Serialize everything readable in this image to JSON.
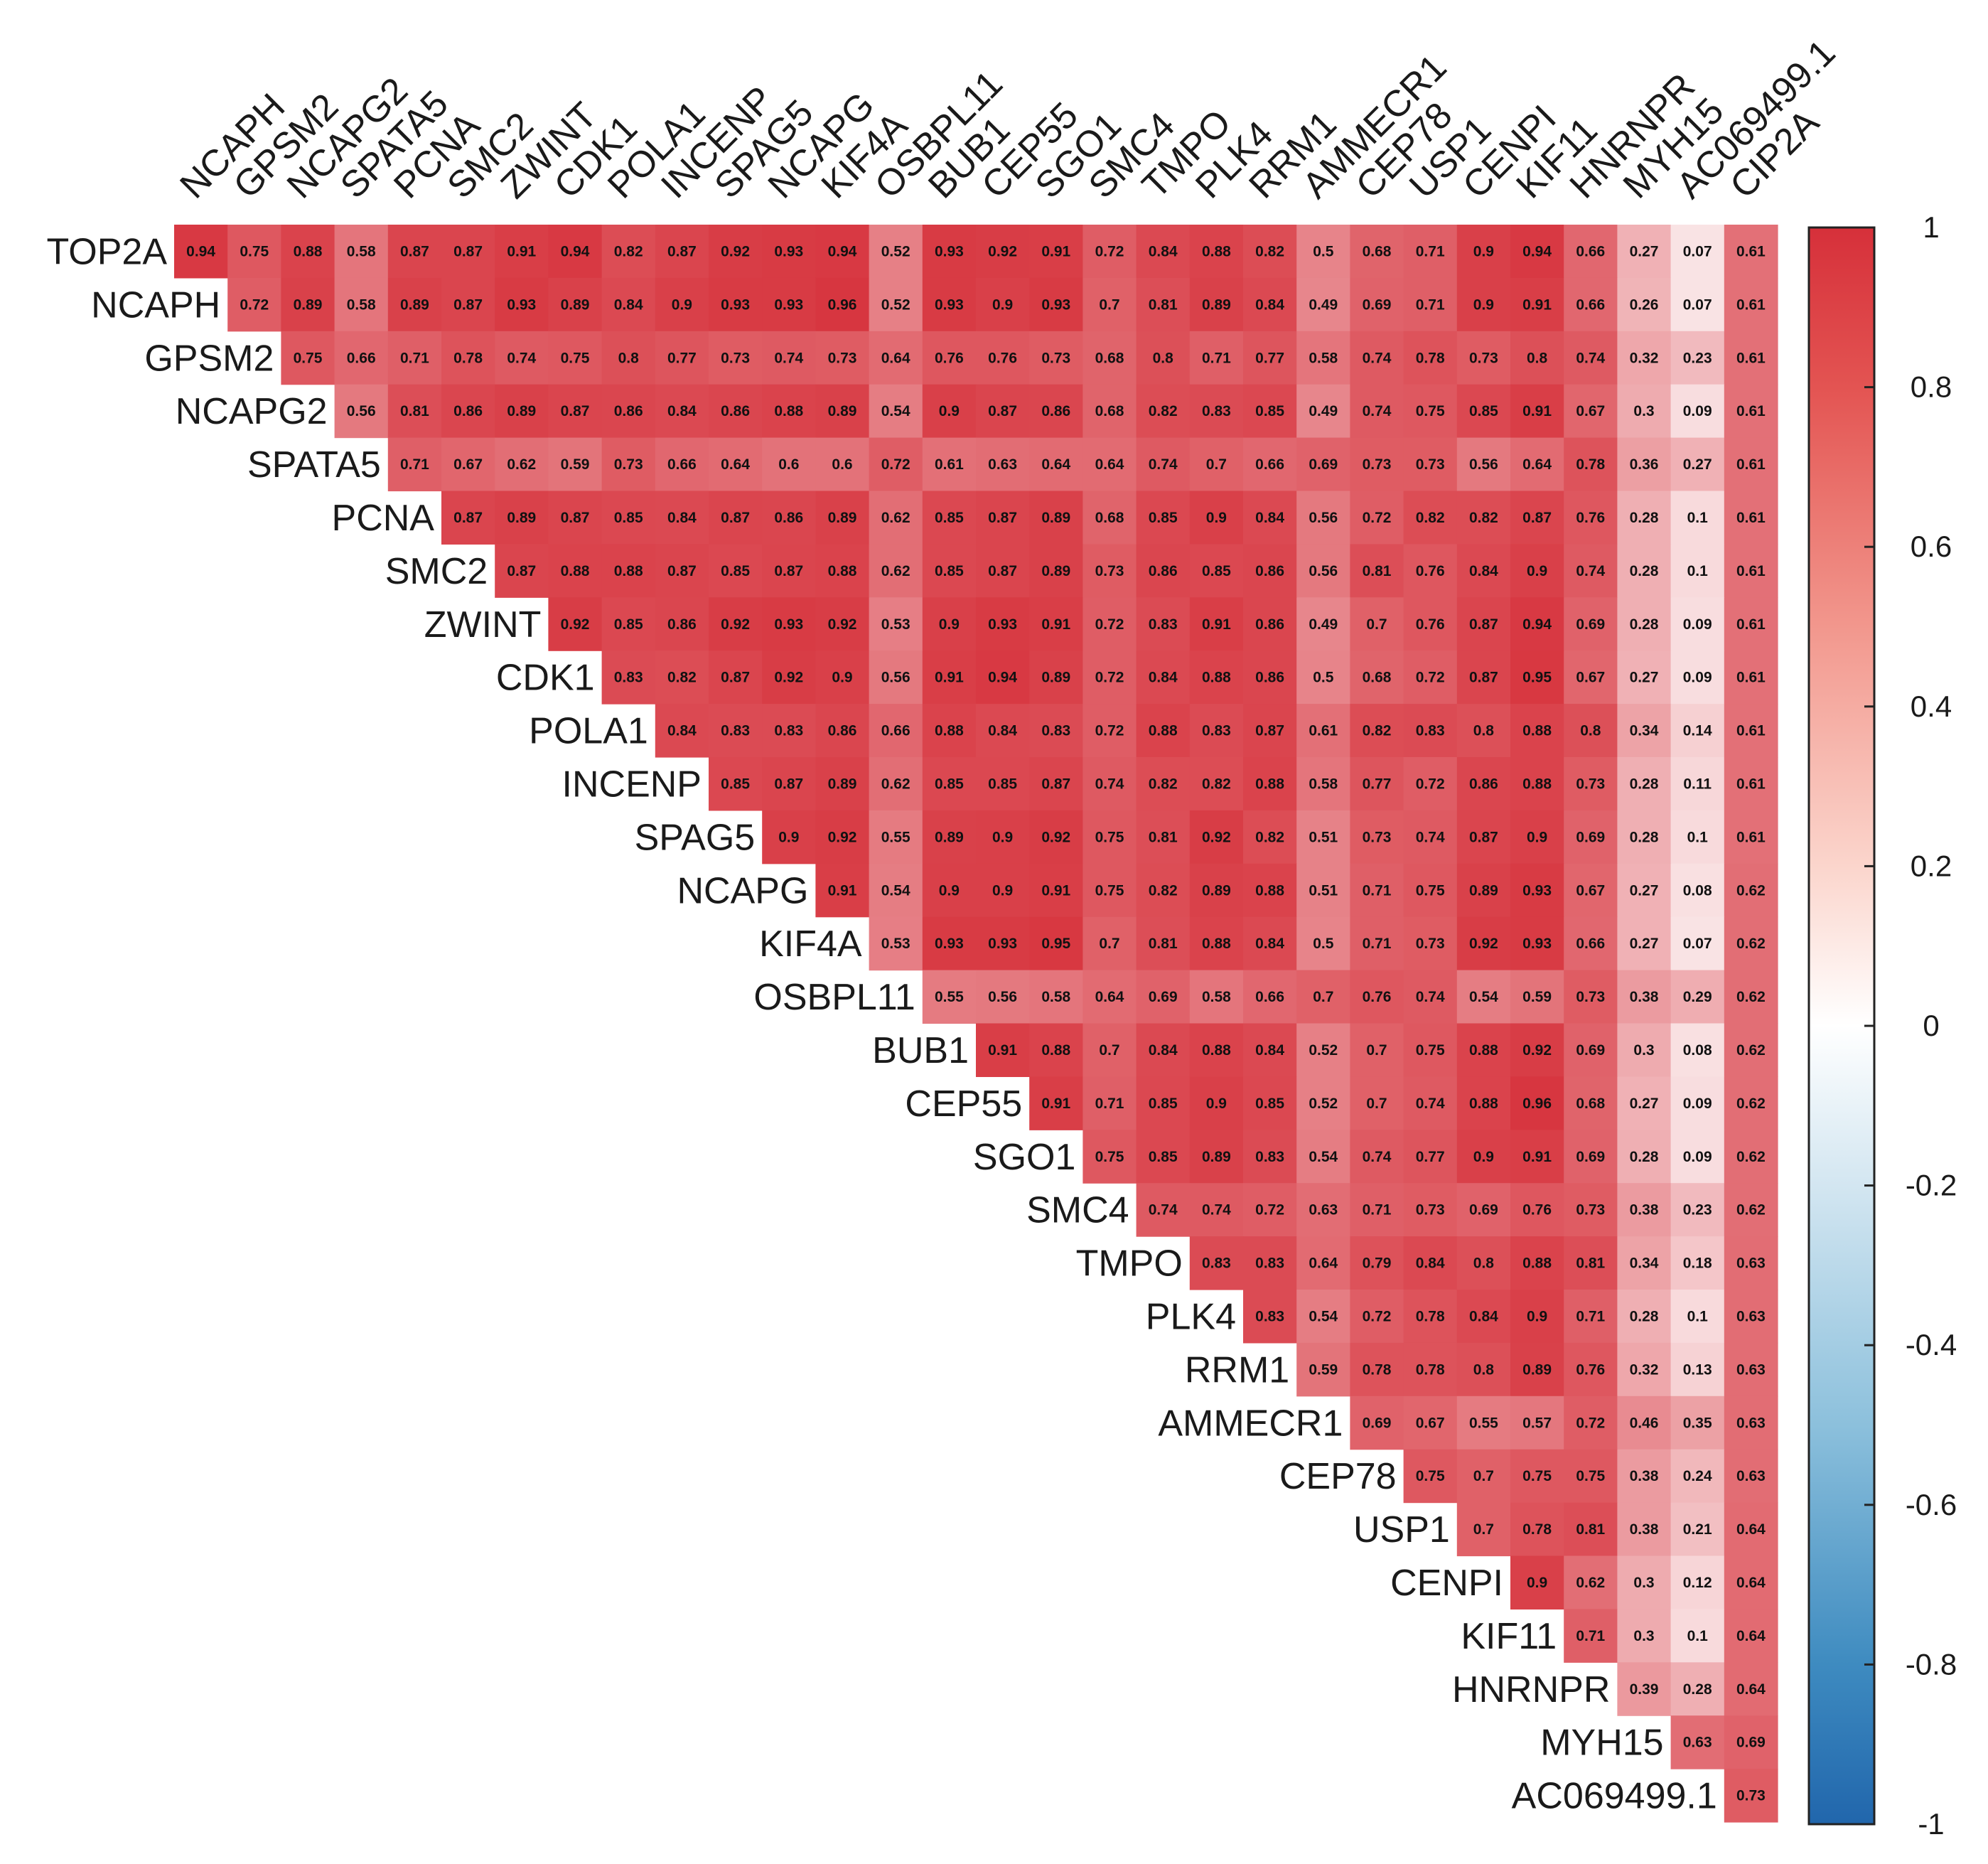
{
  "chart_data": {
    "type": "heatmap",
    "title": "",
    "xlabel": "",
    "ylabel": "",
    "genes": [
      "TOP2A",
      "NCAPH",
      "GPSM2",
      "NCAPG2",
      "SPATA5",
      "PCNA",
      "SMC2",
      "ZWINT",
      "CDK1",
      "POLA1",
      "INCENP",
      "SPAG5",
      "NCAPG",
      "KIF4A",
      "OSBPL11",
      "BUB1",
      "CEP55",
      "SGO1",
      "SMC4",
      "TMPO",
      "PLK4",
      "RRM1",
      "AMMECR1",
      "CEP78",
      "USP1",
      "CENPI",
      "KIF11",
      "HNRNPR",
      "MYH15",
      "AC069499.1",
      "CIP2A"
    ],
    "row_labels": [
      "TOP2A",
      "NCAPH",
      "GPSM2",
      "NCAPG2",
      "SPATA5",
      "PCNA",
      "SMC2",
      "ZWINT",
      "CDK1",
      "POLA1",
      "INCENP",
      "SPAG5",
      "NCAPG",
      "KIF4A",
      "OSBPL11",
      "BUB1",
      "CEP55",
      "SGO1",
      "SMC4",
      "TMPO",
      "PLK4",
      "RRM1",
      "AMMECR1",
      "CEP78",
      "USP1",
      "CENPI",
      "KIF11",
      "HNRNPR",
      "MYH15",
      "AC069499.1"
    ],
    "column_labels": [
      "NCAPH",
      "GPSM2",
      "NCAPG2",
      "SPATA5",
      "PCNA",
      "SMC2",
      "ZWINT",
      "CDK1",
      "POLA1",
      "INCENP",
      "SPAG5",
      "NCAPG",
      "KIF4A",
      "OSBPL11",
      "BUB1",
      "CEP55",
      "SGO1",
      "SMC4",
      "TMPO",
      "PLK4",
      "RRM1",
      "AMMECR1",
      "CEP78",
      "USP1",
      "CENPI",
      "KIF11",
      "HNRNPR",
      "MYH15",
      "AC069499.1",
      "CIP2A"
    ],
    "values_upper_triangle": [
      [
        0.94,
        0.75,
        0.88,
        0.58,
        0.87,
        0.87,
        0.91,
        0.94,
        0.82,
        0.87,
        0.92,
        0.93,
        0.94,
        0.52,
        0.93,
        0.92,
        0.91,
        0.72,
        0.84,
        0.88,
        0.82,
        0.5,
        0.68,
        0.71,
        0.9,
        0.94,
        0.66,
        0.27,
        0.07,
        0.61
      ],
      [
        0.72,
        0.89,
        0.58,
        0.89,
        0.87,
        0.93,
        0.89,
        0.84,
        0.9,
        0.93,
        0.93,
        0.96,
        0.52,
        0.93,
        0.9,
        0.93,
        0.7,
        0.81,
        0.89,
        0.84,
        0.49,
        0.69,
        0.71,
        0.9,
        0.91,
        0.66,
        0.26,
        0.07,
        0.61
      ],
      [
        0.75,
        0.66,
        0.71,
        0.78,
        0.74,
        0.75,
        0.8,
        0.77,
        0.73,
        0.74,
        0.73,
        0.64,
        0.76,
        0.76,
        0.73,
        0.68,
        0.8,
        0.71,
        0.77,
        0.58,
        0.74,
        0.78,
        0.73,
        0.8,
        0.74,
        0.32,
        0.23,
        0.61
      ],
      [
        0.56,
        0.81,
        0.86,
        0.89,
        0.87,
        0.86,
        0.84,
        0.86,
        0.88,
        0.89,
        0.54,
        0.9,
        0.87,
        0.86,
        0.68,
        0.82,
        0.83,
        0.85,
        0.49,
        0.74,
        0.75,
        0.85,
        0.91,
        0.67,
        0.3,
        0.09,
        0.61
      ],
      [
        0.71,
        0.67,
        0.62,
        0.59,
        0.73,
        0.66,
        0.64,
        0.6,
        0.6,
        0.72,
        0.61,
        0.63,
        0.64,
        0.64,
        0.74,
        0.7,
        0.66,
        0.69,
        0.73,
        0.73,
        0.56,
        0.64,
        0.78,
        0.36,
        0.27,
        0.61
      ],
      [
        0.87,
        0.89,
        0.87,
        0.85,
        0.84,
        0.87,
        0.86,
        0.89,
        0.62,
        0.85,
        0.87,
        0.89,
        0.68,
        0.85,
        0.9,
        0.84,
        0.56,
        0.72,
        0.82,
        0.82,
        0.87,
        0.76,
        0.28,
        0.1,
        0.61
      ],
      [
        0.87,
        0.88,
        0.88,
        0.87,
        0.85,
        0.87,
        0.88,
        0.62,
        0.85,
        0.87,
        0.89,
        0.73,
        0.86,
        0.85,
        0.86,
        0.56,
        0.81,
        0.76,
        0.84,
        0.9,
        0.74,
        0.28,
        0.1,
        0.61
      ],
      [
        0.92,
        0.85,
        0.86,
        0.92,
        0.93,
        0.92,
        0.53,
        0.9,
        0.93,
        0.91,
        0.72,
        0.83,
        0.91,
        0.86,
        0.49,
        0.7,
        0.76,
        0.87,
        0.94,
        0.69,
        0.28,
        0.09,
        0.61
      ],
      [
        0.83,
        0.82,
        0.87,
        0.92,
        0.9,
        0.56,
        0.91,
        0.94,
        0.89,
        0.72,
        0.84,
        0.88,
        0.86,
        0.5,
        0.68,
        0.72,
        0.87,
        0.95,
        0.67,
        0.27,
        0.09,
        0.61
      ],
      [
        0.84,
        0.83,
        0.83,
        0.86,
        0.66,
        0.88,
        0.84,
        0.83,
        0.72,
        0.88,
        0.83,
        0.87,
        0.61,
        0.82,
        0.83,
        0.8,
        0.88,
        0.8,
        0.34,
        0.14,
        0.61
      ],
      [
        0.85,
        0.87,
        0.89,
        0.62,
        0.85,
        0.85,
        0.87,
        0.74,
        0.82,
        0.82,
        0.88,
        0.58,
        0.77,
        0.72,
        0.86,
        0.88,
        0.73,
        0.28,
        0.11,
        0.61
      ],
      [
        0.9,
        0.92,
        0.55,
        0.89,
        0.9,
        0.92,
        0.75,
        0.81,
        0.92,
        0.82,
        0.51,
        0.73,
        0.74,
        0.87,
        0.9,
        0.69,
        0.28,
        0.1,
        0.61
      ],
      [
        0.91,
        0.54,
        0.9,
        0.9,
        0.91,
        0.75,
        0.82,
        0.89,
        0.88,
        0.51,
        0.71,
        0.75,
        0.89,
        0.93,
        0.67,
        0.27,
        0.08,
        0.62
      ],
      [
        0.53,
        0.93,
        0.93,
        0.95,
        0.7,
        0.81,
        0.88,
        0.84,
        0.5,
        0.71,
        0.73,
        0.92,
        0.93,
        0.66,
        0.27,
        0.07,
        0.62
      ],
      [
        0.55,
        0.56,
        0.58,
        0.64,
        0.69,
        0.58,
        0.66,
        0.7,
        0.76,
        0.74,
        0.54,
        0.59,
        0.73,
        0.38,
        0.29,
        0.62
      ],
      [
        0.91,
        0.88,
        0.7,
        0.84,
        0.88,
        0.84,
        0.52,
        0.7,
        0.75,
        0.88,
        0.92,
        0.69,
        0.3,
        0.08,
        0.62
      ],
      [
        0.91,
        0.71,
        0.85,
        0.9,
        0.85,
        0.52,
        0.7,
        0.74,
        0.88,
        0.96,
        0.68,
        0.27,
        0.09,
        0.62
      ],
      [
        0.75,
        0.85,
        0.89,
        0.83,
        0.54,
        0.74,
        0.77,
        0.9,
        0.91,
        0.69,
        0.28,
        0.09,
        0.62
      ],
      [
        0.74,
        0.74,
        0.72,
        0.63,
        0.71,
        0.73,
        0.69,
        0.76,
        0.73,
        0.38,
        0.23,
        0.62
      ],
      [
        0.83,
        0.83,
        0.64,
        0.79,
        0.84,
        0.8,
        0.88,
        0.81,
        0.34,
        0.18,
        0.63
      ],
      [
        0.83,
        0.54,
        0.72,
        0.78,
        0.84,
        0.9,
        0.71,
        0.28,
        0.1,
        0.63
      ],
      [
        0.59,
        0.78,
        0.78,
        0.8,
        0.89,
        0.76,
        0.32,
        0.13,
        0.63
      ],
      [
        0.69,
        0.67,
        0.55,
        0.57,
        0.72,
        0.46,
        0.35,
        0.63
      ],
      [
        0.75,
        0.7,
        0.75,
        0.75,
        0.38,
        0.24,
        0.63
      ],
      [
        0.7,
        0.78,
        0.81,
        0.38,
        0.21,
        0.64
      ],
      [
        0.9,
        0.62,
        0.3,
        0.12,
        0.64
      ],
      [
        0.71,
        0.3,
        0.1,
        0.64
      ],
      [
        0.39,
        0.28,
        0.64
      ],
      [
        0.63,
        0.69
      ],
      [
        0.73
      ]
    ],
    "color_scale": {
      "min": -1,
      "max": 1,
      "low_color": "#2166ac",
      "mid_color": "#ffffff",
      "high_color": "#d6303a",
      "ticks": [
        1,
        0.8,
        0.6,
        0.4,
        0.2,
        0,
        -0.2,
        -0.4,
        -0.6,
        -0.8,
        -1
      ],
      "tick_labels": [
        "1",
        "0.8",
        "0.6",
        "0.4",
        "0.2",
        "0",
        "-0.2",
        "-0.4",
        "-0.6",
        "-0.8",
        "-1"
      ]
    },
    "legend_position": "right"
  }
}
